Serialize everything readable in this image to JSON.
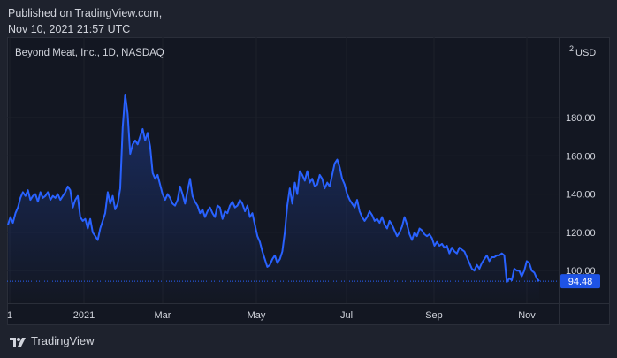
{
  "header": {
    "line1": "Published on TradingView.com,",
    "line2": "Nov 10, 2021 21:57 UTC"
  },
  "footer": {
    "brand": "TradingView"
  },
  "colors": {
    "background": "#1e222d",
    "panel": "#131722",
    "line": "#2962ff",
    "label": "#1e53e5",
    "text": "#d1d4dc"
  },
  "chart_data": {
    "type": "area",
    "title": "Beyond Meat, Inc., 1D, NASDAQ",
    "currency": "USD",
    "currency_prefix": "2",
    "ylim": [
      83,
      222
    ],
    "y_ticks": [
      "100.00",
      "120.00",
      "140.00",
      "160.00",
      "180.00"
    ],
    "x_ticks": [
      "1",
      "2021",
      "Mar",
      "May",
      "Jul",
      "Sep",
      "Nov"
    ],
    "last_value": "94.48",
    "series": [
      {
        "values": [
          124,
          128,
          125,
          130,
          133,
          138,
          141,
          139,
          142,
          137,
          139,
          140,
          136,
          141,
          138,
          139,
          141,
          137,
          139,
          138,
          140,
          137,
          139,
          141,
          144,
          142,
          133,
          137,
          139,
          128,
          126,
          127,
          122,
          127,
          120,
          118,
          116,
          122,
          126,
          130,
          141,
          135,
          139,
          132,
          135,
          143,
          175,
          192,
          182,
          161,
          166,
          168,
          166,
          170,
          174,
          168,
          172,
          165,
          151,
          148,
          150,
          145,
          140,
          137,
          140,
          138,
          135,
          134,
          137,
          144,
          140,
          135,
          142,
          148,
          139,
          136,
          134,
          130,
          132,
          128,
          131,
          133,
          130,
          128,
          134,
          133,
          127,
          131,
          130,
          134,
          136,
          133,
          134,
          137,
          135,
          131,
          134,
          128,
          130,
          124,
          118,
          115,
          110,
          106,
          102,
          103,
          106,
          108,
          104,
          106,
          110,
          120,
          134,
          143,
          135,
          146,
          140,
          152,
          150,
          147,
          152,
          146,
          148,
          144,
          145,
          150,
          148,
          143,
          146,
          144,
          150,
          156,
          158,
          154,
          148,
          145,
          140,
          137,
          135,
          133,
          137,
          131,
          128,
          126,
          128,
          131,
          129,
          126,
          127,
          125,
          128,
          124,
          122,
          126,
          124,
          121,
          118,
          120,
          123,
          128,
          124,
          119,
          116,
          120,
          118,
          122,
          121,
          119,
          118,
          119,
          117,
          113,
          115,
          113,
          114,
          112,
          113,
          109,
          112,
          110,
          109,
          112,
          111,
          110,
          107,
          104,
          101,
          100,
          103,
          101,
          104,
          106,
          108,
          105,
          107,
          107,
          108,
          108,
          109,
          108,
          94,
          96,
          95,
          101,
          100,
          100,
          97,
          100,
          105,
          104,
          100,
          99,
          96,
          94.48
        ]
      }
    ]
  }
}
